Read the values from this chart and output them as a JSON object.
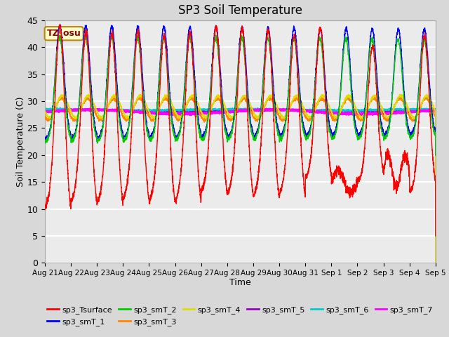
{
  "title": "SP3 Soil Temperature",
  "xlabel": "Time",
  "ylabel": "Soil Temperature (C)",
  "ylim": [
    0,
    45
  ],
  "yticks": [
    0,
    5,
    10,
    15,
    20,
    25,
    30,
    35,
    40,
    45
  ],
  "n_days": 15,
  "x_tick_labels": [
    "Aug 21",
    "Aug 22",
    "Aug 23",
    "Aug 24",
    "Aug 25",
    "Aug 26",
    "Aug 27",
    "Aug 28",
    "Aug 29",
    "Aug 30",
    "Aug 31",
    "Sep 1",
    "Sep 2",
    "Sep 3",
    "Sep 4",
    "Sep 5"
  ],
  "tz_label": "TZ_osu",
  "series_colors": {
    "sp3_Tsurface": "#FF0000",
    "sp3_smT_1": "#0000FF",
    "sp3_smT_2": "#00CC00",
    "sp3_smT_3": "#FF8800",
    "sp3_smT_4": "#DDDD00",
    "sp3_smT_5": "#9900CC",
    "sp3_smT_6": "#00CCCC",
    "sp3_smT_7": "#FF00FF"
  },
  "background_color": "#D8D8D8",
  "plot_bg_color": "#EBEBEB",
  "grid_color": "#FFFFFF"
}
